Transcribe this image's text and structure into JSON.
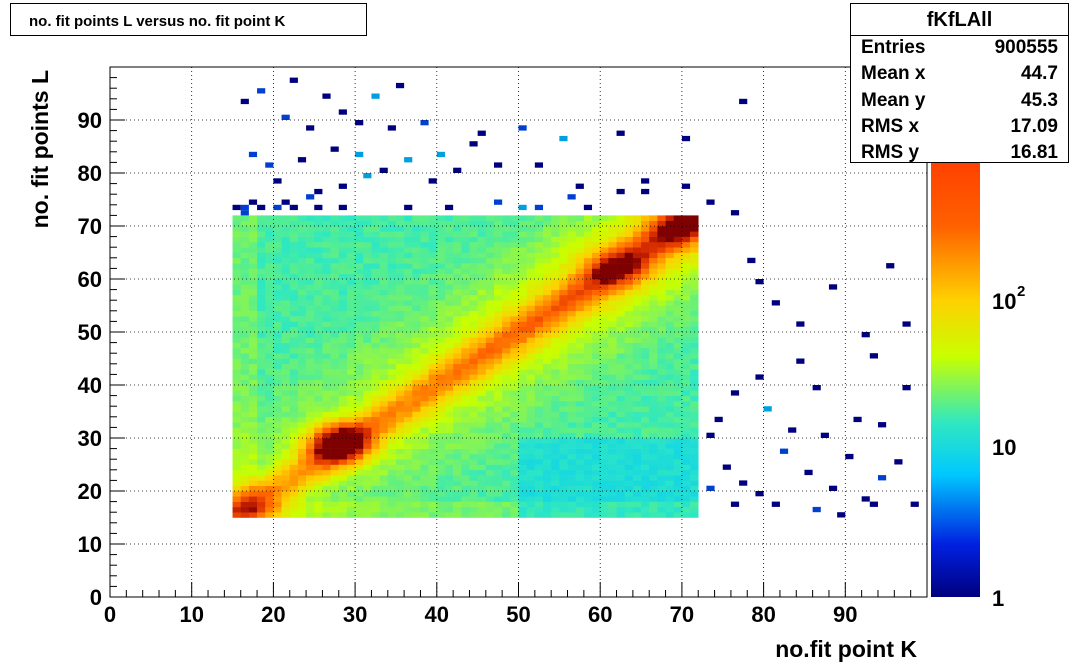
{
  "title": "no. fit points L versus no. fit point K",
  "stats": {
    "name": "fKfLAll",
    "rows": [
      {
        "key": "Entries",
        "value": "900555"
      },
      {
        "key": "Mean x",
        "value": "44.7"
      },
      {
        "key": "Mean y",
        "value": "45.3"
      },
      {
        "key": "RMS x",
        "value": "17.09"
      },
      {
        "key": "RMS y",
        "value": "16.81"
      }
    ]
  },
  "chart_data": {
    "type": "heatmap",
    "title": "no. fit points L versus no. fit point K",
    "xlabel": "no.fit point K",
    "ylabel": "no. fit points  L",
    "xlim": [
      0,
      100
    ],
    "ylim": [
      0,
      100
    ],
    "x_ticks": [
      0,
      10,
      20,
      30,
      40,
      50,
      60,
      70,
      80,
      90
    ],
    "y_ticks": [
      0,
      10,
      20,
      30,
      40,
      50,
      60,
      70,
      80,
      90
    ],
    "grid": true,
    "z_scale": "log",
    "z_range": [
      1,
      1000
    ],
    "palette_labels": [
      "1",
      "10",
      "10",
      "2"
    ],
    "dense_region": {
      "x": [
        15,
        72
      ],
      "y": [
        15,
        72
      ]
    },
    "ridge_peaks": [
      {
        "x": 28,
        "y": 29,
        "level": "max"
      },
      {
        "x": 62,
        "y": 62,
        "level": "high"
      },
      {
        "x": 70,
        "y": 70,
        "level": "high"
      },
      {
        "x": 17,
        "y": 17,
        "level": "high"
      }
    ],
    "colors": {
      "low": "#00007f",
      "mid_low": "#00c8ff",
      "mid": "#c8ff00",
      "high": "#ff6000",
      "max": "#7f0000"
    }
  }
}
